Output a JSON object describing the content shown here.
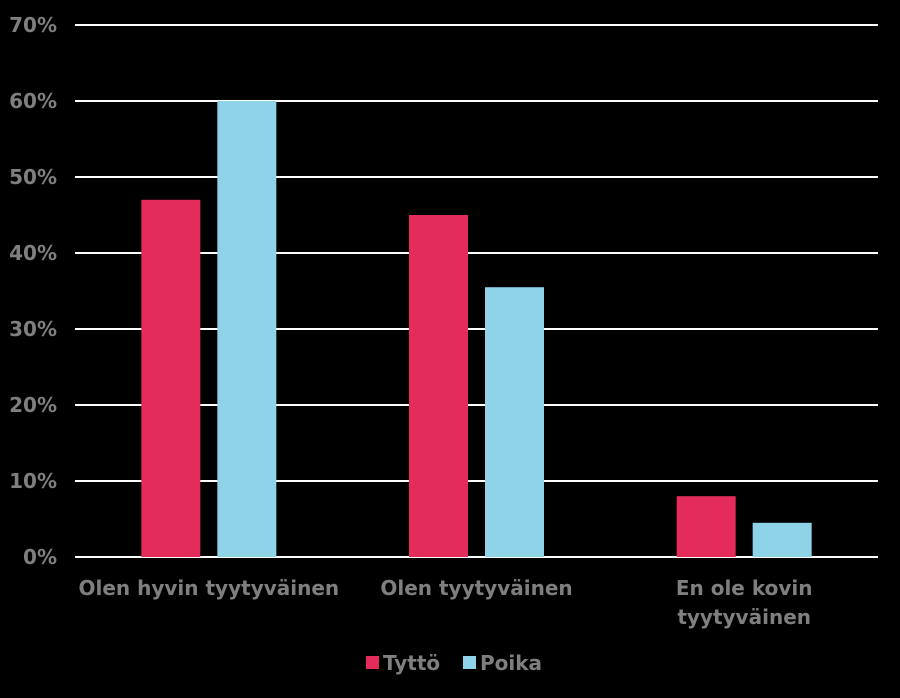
{
  "chart_data": {
    "type": "bar",
    "categories": [
      [
        "Olen hyvin tyytyväinen"
      ],
      [
        "Olen tyytyväinen"
      ],
      [
        "En ole kovin",
        "tyytyväinen"
      ]
    ],
    "series": [
      {
        "name": "Tyttö",
        "color": "#e32c5a",
        "values": [
          47,
          45,
          8
        ]
      },
      {
        "name": "Poika",
        "color": "#8fd3e8",
        "values": [
          60,
          35.5,
          4.5
        ]
      }
    ],
    "yticks": [
      "0%",
      "10%",
      "20%",
      "30%",
      "40%",
      "50%",
      "60%",
      "70%"
    ],
    "ylim": [
      0,
      70
    ],
    "grid": true,
    "legend_position": "bottom",
    "title": "",
    "xlabel": "",
    "ylabel": ""
  }
}
